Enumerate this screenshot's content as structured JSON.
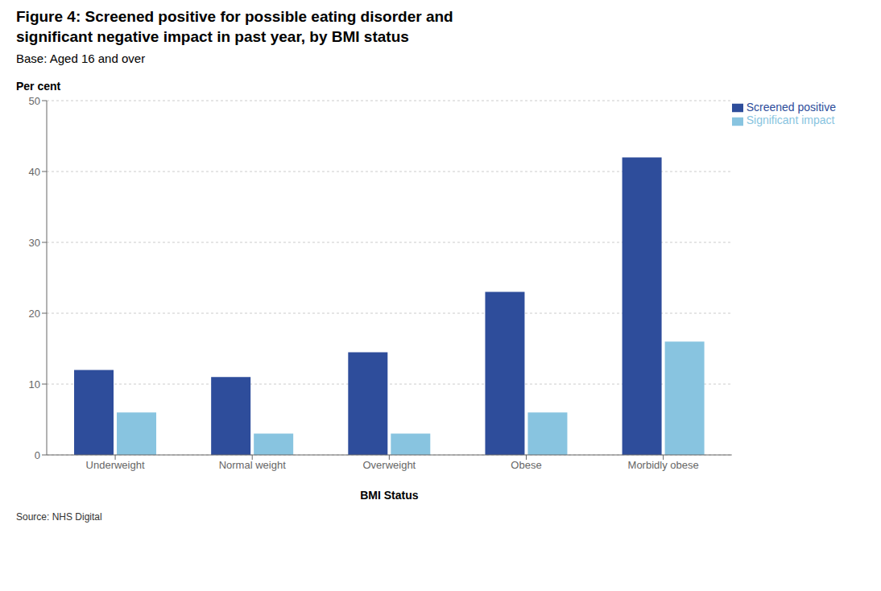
{
  "chart_data": {
    "type": "bar",
    "title": "Figure 4: Screened positive for possible eating disorder and\nsignificant negative impact in past year, by BMI status",
    "subtitle": "Base: Aged 16 and over",
    "ylabel": "Per cent",
    "xlabel": "BMI Status",
    "annotations": [
      "Source: NHS Digital"
    ],
    "categories": [
      "Underweight",
      "Normal weight",
      "Overweight",
      "Obese",
      "Morbidly obese"
    ],
    "series": [
      {
        "name": "Screened positive",
        "color": "#2E4D9B",
        "values": [
          12,
          11,
          14.5,
          23,
          42
        ]
      },
      {
        "name": "Significant impact",
        "color": "#88C4E0",
        "values": [
          6,
          3,
          3,
          6,
          16
        ]
      }
    ],
    "ylim": [
      0,
      50
    ],
    "yticks": [
      0,
      10,
      20,
      30,
      40,
      50
    ],
    "grid": true,
    "legend": "upper right"
  }
}
